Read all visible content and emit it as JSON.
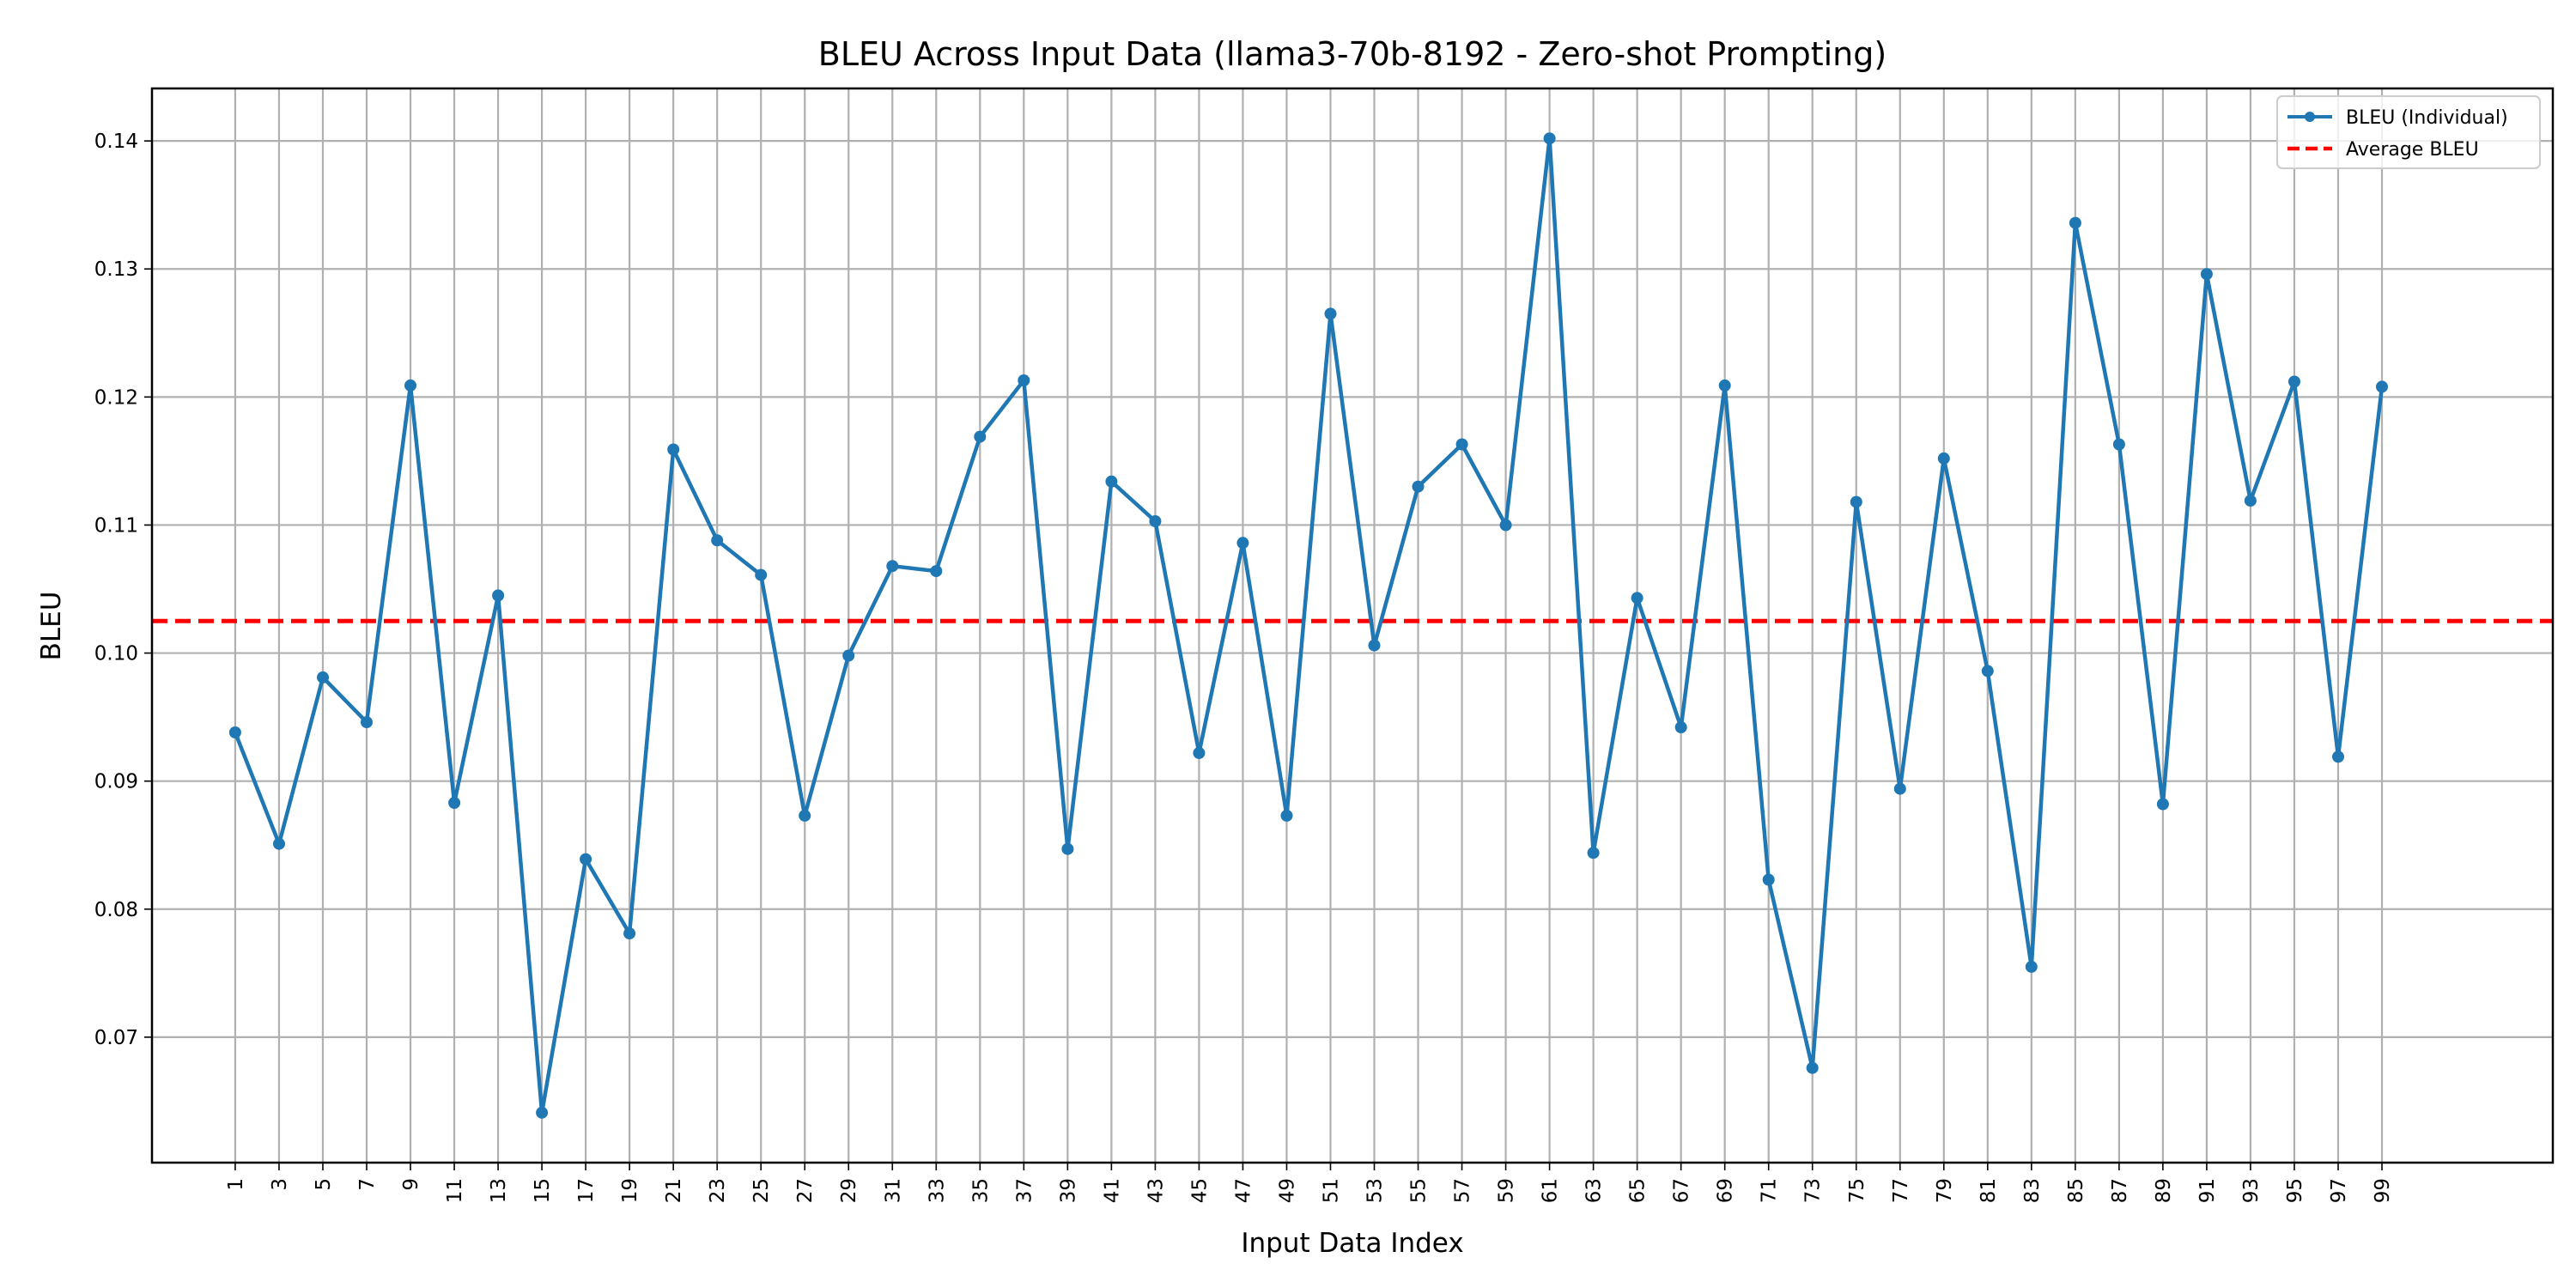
{
  "chart_data": {
    "type": "line",
    "title": "BLEU Across Input Data (llama3-70b-8192 - Zero-shot Prompting)",
    "xlabel": "Input Data Index",
    "ylabel": "BLEU",
    "xlim": [
      -2.8,
      106.8
    ],
    "ylim": [
      0.0602,
      0.1441
    ],
    "x_ticks": [
      1,
      3,
      5,
      7,
      9,
      11,
      13,
      15,
      17,
      19,
      21,
      23,
      25,
      27,
      29,
      31,
      33,
      35,
      37,
      39,
      41,
      43,
      45,
      47,
      49,
      51,
      53,
      55,
      57,
      59,
      61,
      63,
      65,
      67,
      69,
      71,
      73,
      75,
      77,
      79,
      81,
      83,
      85,
      87,
      89,
      91,
      93,
      95,
      97,
      99
    ],
    "x_tick_labels": [
      "1",
      "3",
      "5",
      "7",
      "9",
      "11",
      "13",
      "15",
      "17",
      "19",
      "21",
      "23",
      "25",
      "27",
      "29",
      "31",
      "33",
      "35",
      "37",
      "39",
      "41",
      "43",
      "45",
      "47",
      "49",
      "51",
      "53",
      "55",
      "57",
      "59",
      "61",
      "63",
      "65",
      "67",
      "69",
      "71",
      "73",
      "75",
      "77",
      "79",
      "81",
      "83",
      "85",
      "87",
      "89",
      "91",
      "93",
      "95",
      "97",
      "99"
    ],
    "y_ticks": [
      0.07,
      0.08,
      0.09,
      0.1,
      0.11,
      0.12,
      0.13,
      0.14
    ],
    "y_tick_labels": [
      "0.07",
      "0.08",
      "0.09",
      "0.10",
      "0.11",
      "0.12",
      "0.13",
      "0.14"
    ],
    "grid": true,
    "legend_position": "top-right",
    "series": [
      {
        "name": "BLEU (Individual)",
        "color": "#1f77b4",
        "style": "solid-with-markers",
        "x": [
          1,
          3,
          5,
          7,
          9,
          11,
          13,
          15,
          17,
          19,
          21,
          23,
          25,
          27,
          29,
          31,
          33,
          35,
          37,
          39,
          41,
          43,
          45,
          47,
          49,
          51,
          53,
          55,
          57,
          59,
          61,
          63,
          65,
          67,
          69,
          71,
          73,
          75,
          77,
          79,
          81,
          83,
          85,
          87,
          89,
          91,
          93,
          95,
          97,
          99
        ],
        "values": [
          0.0938,
          0.0851,
          0.0981,
          0.0946,
          0.1209,
          0.0883,
          0.1045,
          0.0641,
          0.0839,
          0.0781,
          0.1159,
          0.1088,
          0.1061,
          0.0873,
          0.0998,
          0.1068,
          0.1064,
          0.1169,
          0.1213,
          0.0847,
          0.1134,
          0.1103,
          0.0922,
          0.1086,
          0.0873,
          0.1265,
          0.1006,
          0.113,
          0.1163,
          0.11,
          0.1402,
          0.0844,
          0.1043,
          0.0942,
          0.1209,
          0.0823,
          0.0676,
          0.1118,
          0.0894,
          0.1152,
          0.0986,
          0.0755,
          0.1336,
          0.1163,
          0.0882,
          0.1296,
          0.1119,
          0.1212,
          0.0919,
          0.1208
        ]
      },
      {
        "name": "Average BLEU",
        "color": "#ff0000",
        "style": "dashed",
        "value": 0.1025
      }
    ]
  }
}
